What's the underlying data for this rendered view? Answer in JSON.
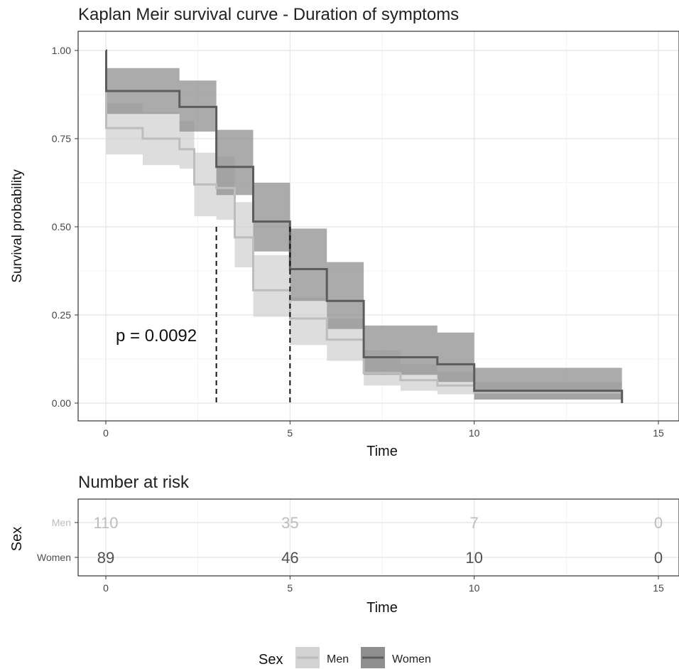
{
  "chart_data": [
    {
      "type": "line",
      "subtype": "step-survival",
      "title": "Kaplan Meir survival curve - Duration of symptoms",
      "xlabel": "Time",
      "ylabel": "Survival probability",
      "xlim": [
        0,
        15
      ],
      "ylim": [
        0,
        1
      ],
      "x_ticks": [
        0,
        5,
        10,
        15
      ],
      "y_ticks": [
        0,
        0.25,
        0.5,
        0.75,
        1.0
      ],
      "x_tick_labels": [
        "0",
        "5",
        "10",
        "15"
      ],
      "y_tick_labels": [
        "0.00",
        "0.25",
        "0.50",
        "0.75",
        "1.00"
      ],
      "grid": true,
      "annotation": "p = 0.0092",
      "median_lines": [
        {
          "x": 3,
          "y": 0.5
        },
        {
          "x": 5,
          "y": 0.5
        }
      ],
      "series": [
        {
          "name": "Men",
          "color": "#bdbdbd",
          "band_color": "#d2d2d2",
          "x": [
            0,
            0.01,
            1,
            2,
            2.4,
            3,
            3.5,
            4,
            5,
            6,
            7,
            8,
            9,
            10,
            14,
            14.01
          ],
          "y": [
            1.0,
            0.78,
            0.75,
            0.72,
            0.62,
            0.61,
            0.47,
            0.32,
            0.24,
            0.18,
            0.085,
            0.065,
            0.05,
            0.03,
            0.03,
            0.0
          ],
          "lower": [
            1.0,
            0.705,
            0.675,
            0.665,
            0.53,
            0.52,
            0.385,
            0.245,
            0.165,
            0.12,
            0.05,
            0.035,
            0.025,
            0.01,
            0.01,
            0.0
          ],
          "upper": [
            1.0,
            0.85,
            0.825,
            0.8,
            0.71,
            0.7,
            0.57,
            0.42,
            0.3,
            0.24,
            0.15,
            0.11,
            0.09,
            0.06,
            0.06,
            0.0
          ]
        },
        {
          "name": "Women",
          "color": "#5c5c5c",
          "band_color": "#8f8f8f",
          "x": [
            0,
            0.01,
            2,
            3,
            4,
            5,
            6,
            7,
            9,
            10,
            14,
            14.01
          ],
          "y": [
            1.0,
            0.885,
            0.84,
            0.67,
            0.515,
            0.38,
            0.29,
            0.13,
            0.11,
            0.035,
            0.035,
            0.0
          ],
          "lower": [
            1.0,
            0.82,
            0.77,
            0.59,
            0.43,
            0.29,
            0.21,
            0.08,
            0.06,
            0.01,
            0.01,
            0.0
          ],
          "upper": [
            1.0,
            0.95,
            0.915,
            0.775,
            0.625,
            0.495,
            0.4,
            0.22,
            0.2,
            0.1,
            0.1,
            0.0
          ]
        }
      ]
    },
    {
      "type": "table",
      "title": "Number at risk",
      "xlabel": "Time",
      "ylabel": "Sex",
      "xlim": [
        0,
        15
      ],
      "x_ticks": [
        0,
        5,
        10,
        15
      ],
      "x_tick_labels": [
        "0",
        "5",
        "10",
        "15"
      ],
      "grid": true,
      "rows": [
        {
          "name": "Men",
          "color": "#bdbdbd",
          "values": [
            110,
            35,
            7,
            0
          ]
        },
        {
          "name": "Women",
          "color": "#505050",
          "values": [
            89,
            46,
            10,
            0
          ]
        }
      ]
    }
  ],
  "legend": {
    "title": "Sex",
    "items": [
      {
        "label": "Men",
        "line_color": "#bdbdbd",
        "fill": "#d2d2d2"
      },
      {
        "label": "Women",
        "line_color": "#5c5c5c",
        "fill": "#8f8f8f"
      }
    ]
  }
}
